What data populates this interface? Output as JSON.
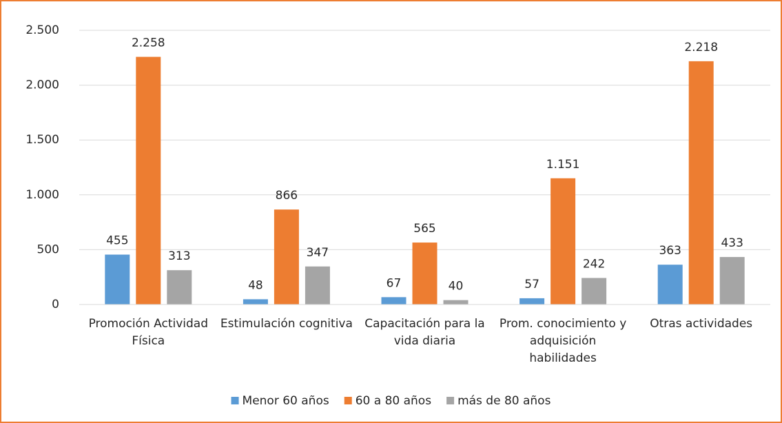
{
  "chart_data": {
    "type": "bar",
    "categories": [
      "Promoción Actividad Física",
      "Estimulación cognitiva",
      "Capacitación para la vida diaria",
      "Prom. conocimiento y adquisición habilidades",
      "Otras actividades"
    ],
    "series": [
      {
        "name": "Menor 60 años",
        "color": "#5b9bd5",
        "values": [
          455,
          48,
          67,
          57,
          363
        ],
        "value_labels": [
          "455",
          "48",
          "67",
          "57",
          "363"
        ]
      },
      {
        "name": "60 a 80 años",
        "color": "#ed7d31",
        "values": [
          2258,
          866,
          565,
          1151,
          2218
        ],
        "value_labels": [
          "2.258",
          "866",
          "565",
          "1.151",
          "2.218"
        ]
      },
      {
        "name": "más de 80 años",
        "color": "#a5a5a5",
        "values": [
          313,
          347,
          40,
          242,
          433
        ],
        "value_labels": [
          "313",
          "347",
          "40",
          "242",
          "433"
        ]
      }
    ],
    "ylim": [
      0,
      2500
    ],
    "yticks": [
      0,
      500,
      {
        "value": 1000,
        "label": "1.000"
      },
      {
        "value": 1500,
        "label": "1.500"
      },
      {
        "value": 2000,
        "label": "2.000"
      },
      {
        "value": 2500,
        "label": "2.500"
      }
    ],
    "grid": true,
    "legend": "bottom"
  }
}
